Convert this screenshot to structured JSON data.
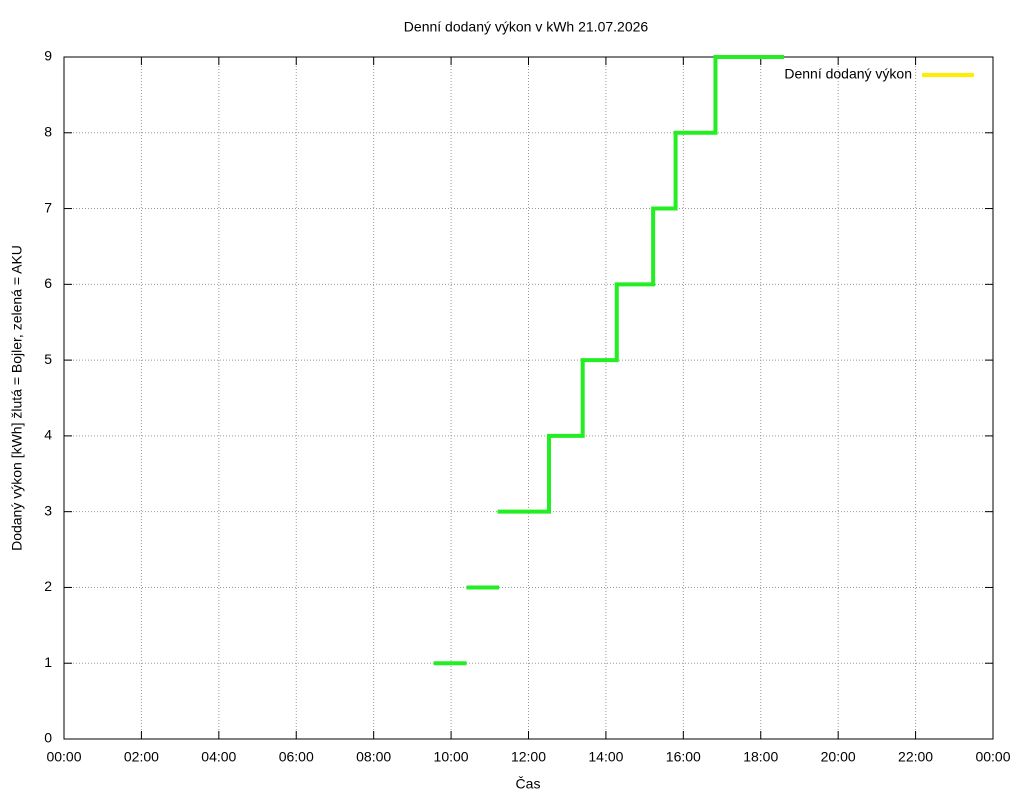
{
  "chart_data": {
    "type": "line",
    "title": "Denní dodaný výkon v kWh 21.07.2026",
    "x_label": "Čas",
    "y_label": "Dodaný výkon [kWh]  žlutá = Bojler, zelená = AKU",
    "xlim": [
      0,
      24
    ],
    "xticks": [
      {
        "value": 0,
        "label": "00:00"
      },
      {
        "value": 2,
        "label": "02:00"
      },
      {
        "value": 4,
        "label": "04:00"
      },
      {
        "value": 6,
        "label": "06:00"
      },
      {
        "value": 8,
        "label": "08:00"
      },
      {
        "value": 10,
        "label": "10:00"
      },
      {
        "value": 12,
        "label": "12:00"
      },
      {
        "value": 14,
        "label": "14:00"
      },
      {
        "value": 16,
        "label": "16:00"
      },
      {
        "value": 18,
        "label": "18:00"
      },
      {
        "value": 20,
        "label": "20:00"
      },
      {
        "value": 22,
        "label": "22:00"
      },
      {
        "value": 24,
        "label": "00:00"
      }
    ],
    "ylim": [
      0,
      9
    ],
    "yticks": [
      0,
      1,
      2,
      3,
      4,
      5,
      6,
      7,
      8,
      9
    ],
    "grid": true,
    "legend": "top-right",
    "series": [
      {
        "name": "Denní dodaný výkon",
        "color": "#22ee22",
        "legend_color": "#ffee00",
        "x": [
          9.55,
          10.4,
          null,
          10.4,
          11.24,
          null,
          11.2,
          12.53,
          12.53,
          13.4,
          13.4,
          14.28,
          14.28,
          15.22,
          15.22,
          15.8,
          15.8,
          16.83,
          16.83,
          18.6
        ],
        "values": [
          1,
          1,
          null,
          2,
          2,
          null,
          3,
          3,
          4,
          4,
          5,
          5,
          6,
          6,
          7,
          7,
          8,
          8,
          9,
          9
        ]
      }
    ]
  }
}
